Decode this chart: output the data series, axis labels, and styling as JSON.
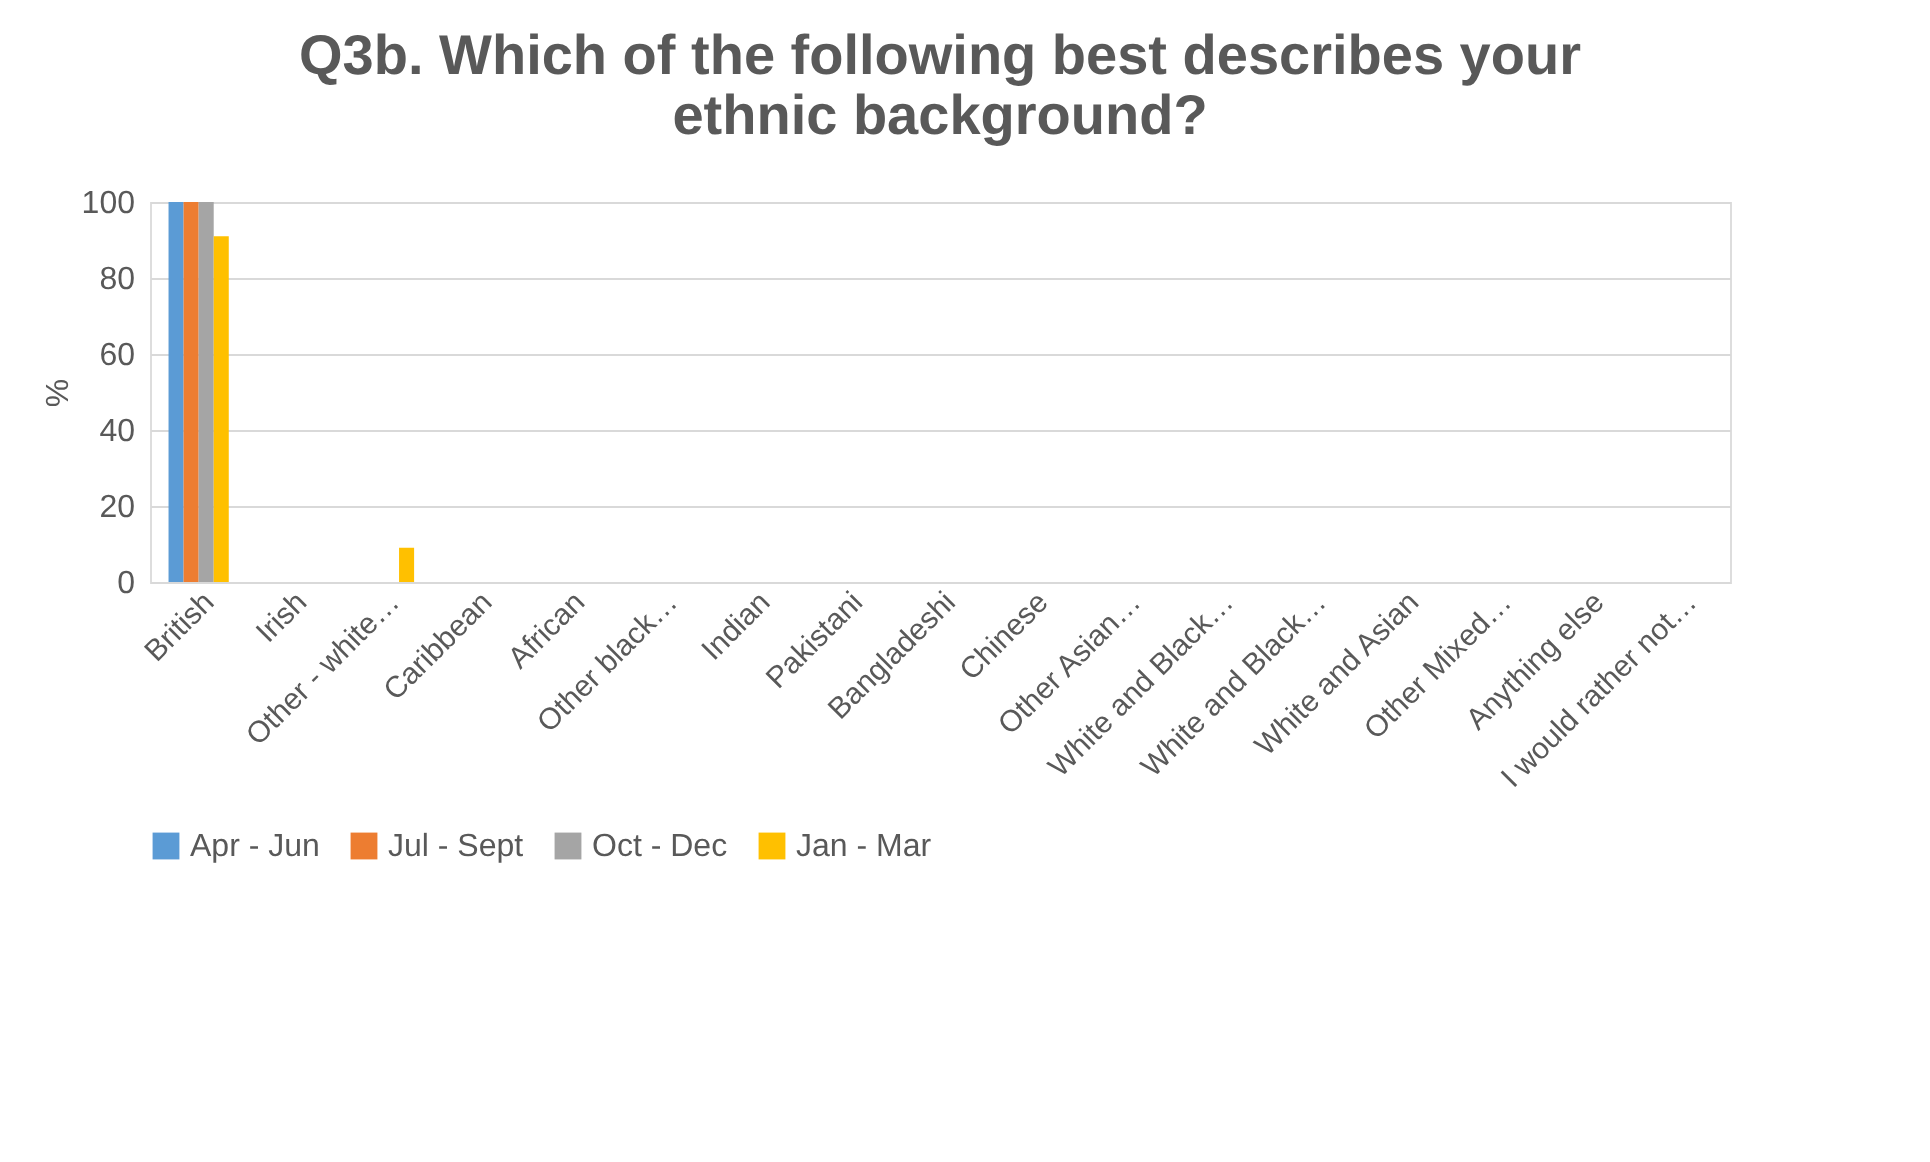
{
  "chart_data": {
    "type": "bar",
    "title": [
      "Q3b. Which of the following best describes your",
      "ethnic background?"
    ],
    "ylabel": "%",
    "categories": [
      "British",
      "Irish",
      "Other - white…",
      "Caribbean",
      "African",
      "Other black…",
      "Indian",
      "Pakistani",
      "Bangladeshi",
      "Chinese",
      "Other Asian…",
      "White and Black…",
      "White and Black…",
      "White and Asian",
      "Other Mixed…",
      "Anything else",
      "I would rather not…"
    ],
    "series": [
      {
        "name": "Apr - Jun",
        "color": "#5b9bd5",
        "values": [
          100,
          0,
          0,
          0,
          0,
          0,
          0,
          0,
          0,
          0,
          0,
          0,
          0,
          0,
          0,
          0,
          0
        ]
      },
      {
        "name": "Jul - Sept",
        "color": "#ed7d31",
        "values": [
          100,
          0,
          0,
          0,
          0,
          0,
          0,
          0,
          0,
          0,
          0,
          0,
          0,
          0,
          0,
          0,
          0
        ]
      },
      {
        "name": "Oct - Dec",
        "color": "#a5a5a5",
        "values": [
          100,
          0,
          0,
          0,
          0,
          0,
          0,
          0,
          0,
          0,
          0,
          0,
          0,
          0,
          0,
          0,
          0
        ]
      },
      {
        "name": "Jan - Mar",
        "color": "#ffc000",
        "values": [
          91,
          0,
          9,
          0,
          0,
          0,
          0,
          0,
          0,
          0,
          0,
          0,
          0,
          0,
          0,
          0,
          0
        ]
      }
    ],
    "ylim": [
      0,
      100
    ],
    "yticks": [
      0,
      20,
      40,
      60,
      80,
      100
    ],
    "grid": "y",
    "legend": "bottom"
  }
}
